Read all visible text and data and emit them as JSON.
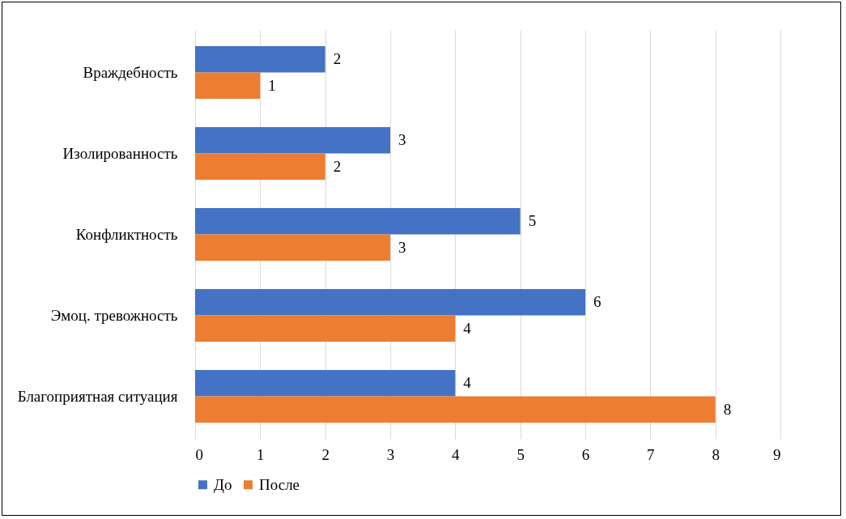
{
  "chart_data": {
    "type": "bar",
    "orientation": "horizontal",
    "categories": [
      "Враждебность",
      "Изолированность",
      "Конфликтность",
      "Эмоц. тревожность",
      "Благоприятная ситуация"
    ],
    "series": [
      {
        "name": "До",
        "color": "#4472c4",
        "values": [
          2,
          3,
          5,
          6,
          4
        ]
      },
      {
        "name": "После",
        "color": "#ed7d31",
        "values": [
          1,
          2,
          3,
          4,
          8
        ]
      }
    ],
    "xlim": [
      0,
      9
    ],
    "xticks": [
      0,
      1,
      2,
      3,
      4,
      5,
      6,
      7,
      8,
      9
    ],
    "grid": "x",
    "legend": "bottom",
    "data_labels": true
  }
}
